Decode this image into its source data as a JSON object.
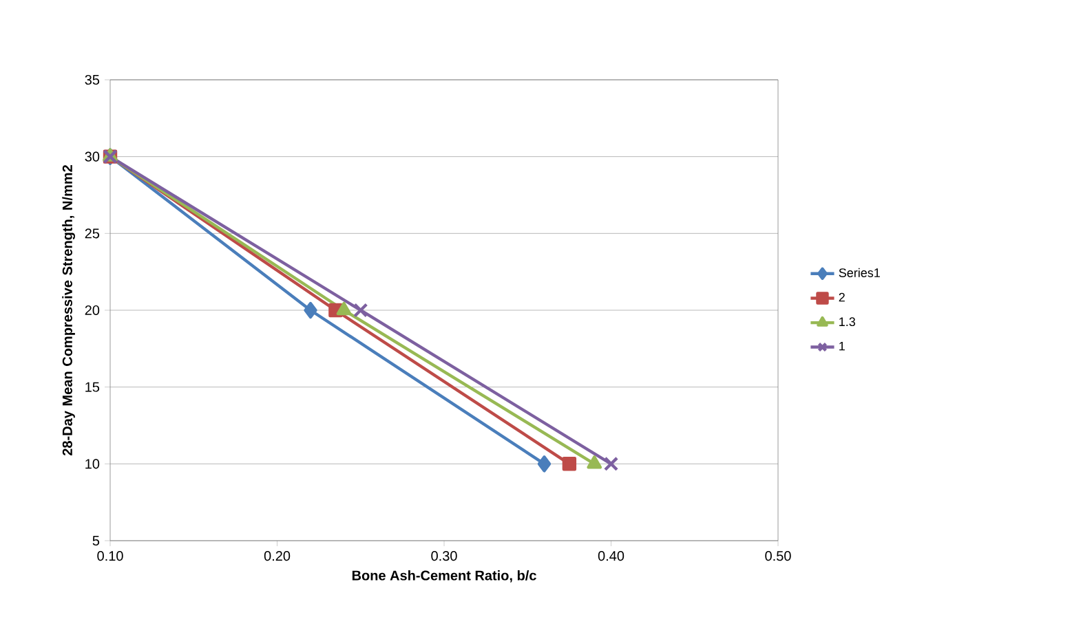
{
  "chart_data": {
    "type": "line",
    "xlabel": "Bone Ash-Cement Ratio, b/c",
    "ylabel": "28-Day Mean Compressive Strength, N/mm2",
    "xlim": [
      0.1,
      0.5
    ],
    "xticks": [
      {
        "value": 0.1,
        "label": "0.10"
      },
      {
        "value": 0.2,
        "label": "0.20"
      },
      {
        "value": 0.3,
        "label": "0.30"
      },
      {
        "value": 0.4,
        "label": "0.40"
      },
      {
        "value": 0.5,
        "label": "0.50"
      }
    ],
    "ylim": [
      5,
      35
    ],
    "yticks": [
      5,
      10,
      15,
      20,
      25,
      30,
      35
    ],
    "grid": "y",
    "legend": "right",
    "series": [
      {
        "name": "Series1",
        "color": "#4a7ebb",
        "marker": "diamond",
        "x": [
          0.1,
          0.22,
          0.36
        ],
        "values": [
          30,
          20,
          10
        ]
      },
      {
        "name": "2",
        "color": "#be4b48",
        "marker": "square",
        "x": [
          0.1,
          0.235,
          0.375
        ],
        "values": [
          30,
          20,
          10
        ]
      },
      {
        "name": "1.3",
        "color": "#98b954",
        "marker": "triangle",
        "x": [
          0.1,
          0.24,
          0.39
        ],
        "values": [
          30,
          20,
          10
        ]
      },
      {
        "name": "1",
        "color": "#7d60a0",
        "marker": "cross",
        "x": [
          0.1,
          0.25,
          0.4
        ],
        "values": [
          30,
          20,
          10
        ]
      }
    ]
  }
}
